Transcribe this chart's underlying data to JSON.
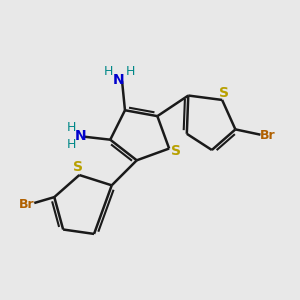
{
  "background_color": "#e8e8e8",
  "bond_color": "#1a1a1a",
  "sulfur_color": "#b8a000",
  "bromine_color": "#b06000",
  "nitrogen_color": "#0000cc",
  "nh2_h_color": "#008888",
  "figsize": [
    3.0,
    3.0
  ],
  "dpi": 100,
  "xlim": [
    0,
    10
  ],
  "ylim": [
    0,
    10
  ]
}
